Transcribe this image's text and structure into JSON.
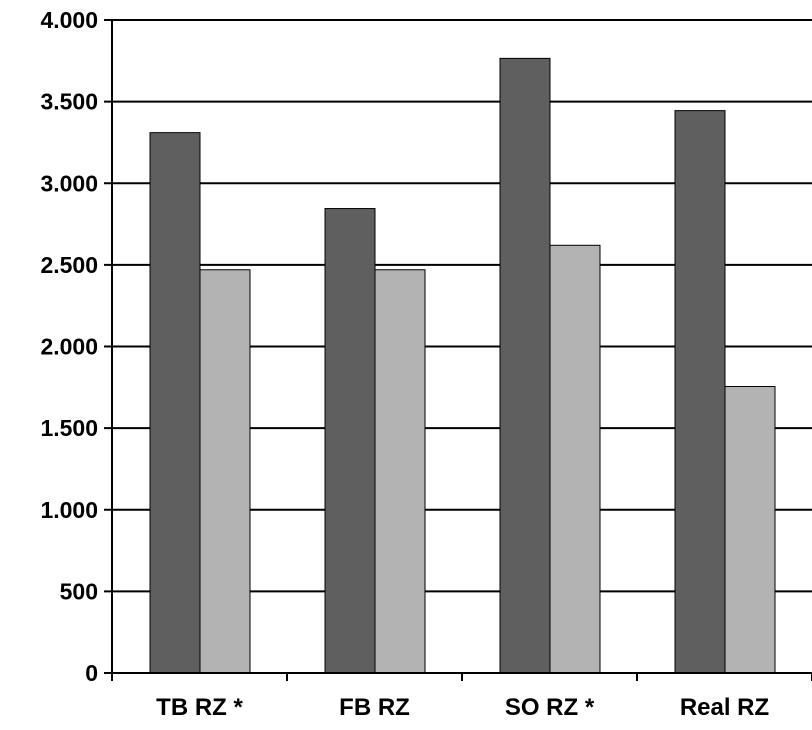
{
  "chart_data": {
    "type": "bar",
    "title": "",
    "xlabel": "",
    "ylabel": "",
    "categories": [
      "TB RZ *",
      "FB RZ",
      "SO RZ *",
      "Real RZ"
    ],
    "series": [
      {
        "values": [
          3310,
          2845,
          3765,
          3445
        ],
        "color": "#5f5f5f"
      },
      {
        "values": [
          2470,
          2470,
          2620,
          1755
        ],
        "color": "#b3b3b3"
      }
    ],
    "ylim": [
      0,
      4000
    ],
    "yticks": [
      0,
      500,
      1000,
      1500,
      2000,
      2500,
      3000,
      3500,
      4000
    ],
    "ytick_labels": [
      "0",
      "500",
      "1.000",
      "1.500",
      "2.000",
      "2.500",
      "3.000",
      "3.500",
      "4.000"
    ],
    "grid": true,
    "legend": "none"
  }
}
